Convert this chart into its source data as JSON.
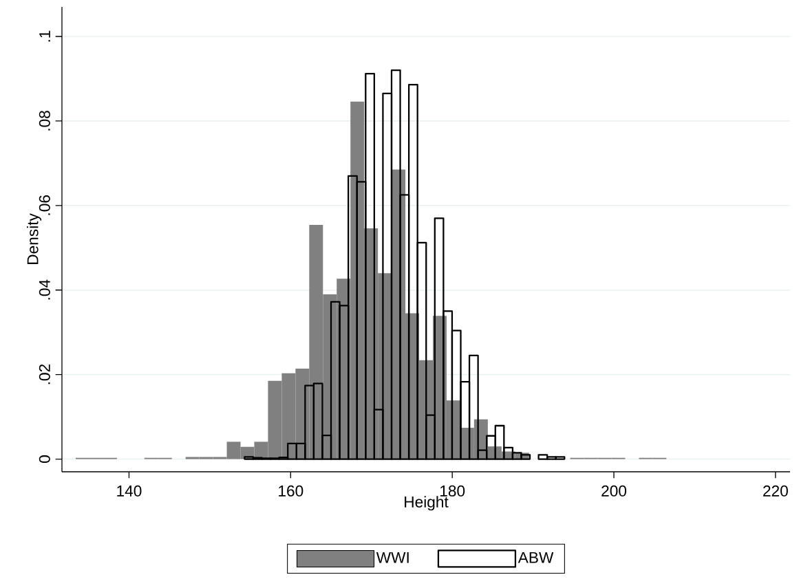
{
  "chart_data": {
    "type": "bar",
    "xlabel": "Height",
    "ylabel": "Density",
    "xlim": [
      131.7,
      221.8
    ],
    "ylim": [
      -0.003,
      0.107
    ],
    "xticks": [
      140,
      160,
      180,
      200,
      220
    ],
    "yticks": [
      {
        "value": 0,
        "label": "0"
      },
      {
        "value": 0.02,
        "label": ".02"
      },
      {
        "value": 0.04,
        "label": ".04"
      },
      {
        "value": 0.06,
        "label": ".06"
      },
      {
        "value": 0.08,
        "label": ".08"
      },
      {
        "value": 0.1,
        "label": ".1"
      }
    ],
    "grid": "y",
    "legend": "bottom",
    "series": [
      {
        "name": "WWI",
        "color": "#808080",
        "x": [
          134.25,
          135.95,
          137.65,
          139.35,
          141.05,
          142.75,
          144.45,
          146.15,
          147.85,
          149.55,
          151.25,
          152.95,
          154.65,
          156.35,
          158.05,
          159.75,
          161.45,
          163.15,
          164.85,
          166.55,
          168.25,
          169.95,
          171.65,
          173.35,
          175.05,
          176.75,
          178.45,
          180.15,
          181.85,
          183.55,
          185.25,
          186.95,
          188.65,
          190.35,
          192.05,
          193.75,
          195.45,
          197.15,
          198.85,
          200.55,
          202.25,
          203.95,
          205.65
        ],
        "values": [
          0.0003,
          0.0003,
          0.0003,
          0,
          0,
          0.0003,
          0.0003,
          0,
          0.0005,
          0.0005,
          0.0005,
          0.0041,
          0.0029,
          0.0041,
          0.0185,
          0.0203,
          0.0214,
          0.0554,
          0.039,
          0.0427,
          0.0846,
          0.0546,
          0.044,
          0.0685,
          0.0345,
          0.0234,
          0.0339,
          0.0139,
          0.0074,
          0.0094,
          0.003,
          0.0018,
          0.0015,
          null,
          null,
          null,
          0.0003,
          0.0003,
          0.0003,
          0.0003,
          0,
          0.0003,
          0.0003
        ]
      },
      {
        "name": "ABW",
        "color": "#000000",
        "x": [
          154.835,
          155.905,
          156.975,
          158.045,
          159.115,
          160.185,
          161.255,
          162.325,
          163.395,
          164.465,
          165.535,
          166.605,
          167.675,
          168.745,
          169.815,
          170.885,
          171.955,
          173.025,
          174.095,
          175.165,
          176.235,
          177.305,
          178.375,
          179.445,
          180.515,
          181.585,
          182.655,
          183.725,
          184.795,
          185.865,
          186.935,
          188.005,
          189.075,
          190.145,
          191.215,
          192.285,
          193.355
        ],
        "values": [
          0.0005,
          0.0003,
          0.0002,
          0.0002,
          0.0004,
          0.0037,
          0.0037,
          0.0174,
          0.0179,
          0.0056,
          0.0372,
          0.0363,
          0.067,
          0.0656,
          0.0912,
          0.0117,
          0.0865,
          0.092,
          0.0625,
          0.0886,
          0.0512,
          0.0104,
          0.057,
          0.035,
          0.0304,
          0.0183,
          0.0245,
          0.0021,
          0.0055,
          0.0079,
          0.0027,
          0.0015,
          0.001,
          0,
          0.001,
          0.0005,
          0.0005
        ]
      }
    ]
  }
}
